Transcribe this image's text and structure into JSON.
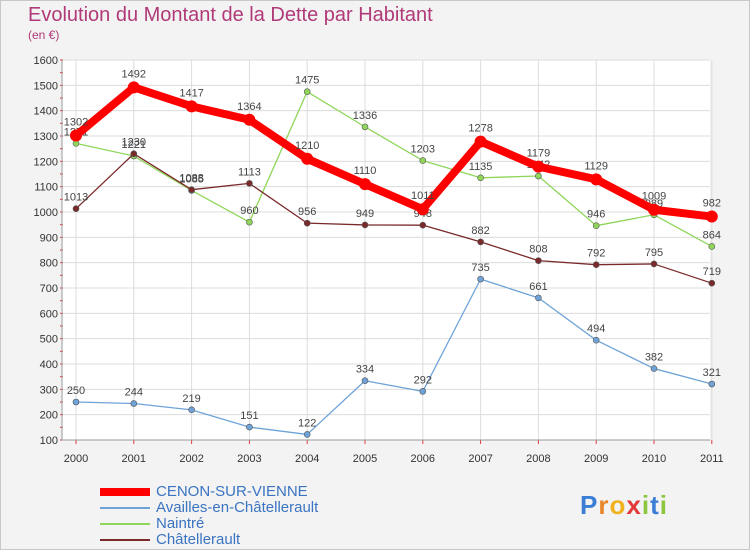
{
  "header": {
    "title": "Evolution du Montant de la Dette par Habitant",
    "subtitle": "(en €)"
  },
  "logo": {
    "text": "Proxiti"
  },
  "colors": {
    "title": "#b03a78",
    "grid": "#dcdcdc",
    "axis_text": "#333333",
    "label_text": "#444444",
    "tick_red": "#e23a3a",
    "legend_text": "#3a74c2"
  },
  "chart_data": {
    "type": "line",
    "title": "Evolution du Montant de la Dette par Habitant",
    "subtitle": "(en €)",
    "xlabel": "",
    "ylabel": "",
    "x": [
      "2000",
      "2001",
      "2002",
      "2003",
      "2004",
      "2005",
      "2006",
      "2007",
      "2008",
      "2009",
      "2010",
      "2011"
    ],
    "ylim": [
      100,
      1600
    ],
    "yticks": [
      100,
      200,
      300,
      400,
      500,
      600,
      700,
      800,
      900,
      1000,
      1100,
      1200,
      1300,
      1400,
      1500,
      1600
    ],
    "grid": true,
    "legend_position": "bottom-left",
    "series": [
      {
        "name": "CENON-SUR-VIENNE",
        "color": "#ff0000",
        "values": [
          1302,
          1492,
          1417,
          1364,
          1210,
          1110,
          1011,
          1278,
          1179,
          1129,
          1009,
          982
        ]
      },
      {
        "name": "Availles-en-Châtellerault",
        "color": "#6fa3d8",
        "values": [
          250,
          244,
          219,
          151,
          122,
          334,
          292,
          735,
          661,
          494,
          382,
          321
        ]
      },
      {
        "name": "Naintré",
        "color": "#8fd65a",
        "values": [
          1271,
          1221,
          1085,
          960,
          1475,
          1336,
          1203,
          1135,
          1142,
          946,
          989,
          864
        ]
      },
      {
        "name": "Châtellerault",
        "color": "#7a2a2a",
        "values": [
          1013,
          1230,
          1088,
          1113,
          956,
          949,
          948,
          882,
          808,
          792,
          795,
          719
        ]
      }
    ]
  }
}
